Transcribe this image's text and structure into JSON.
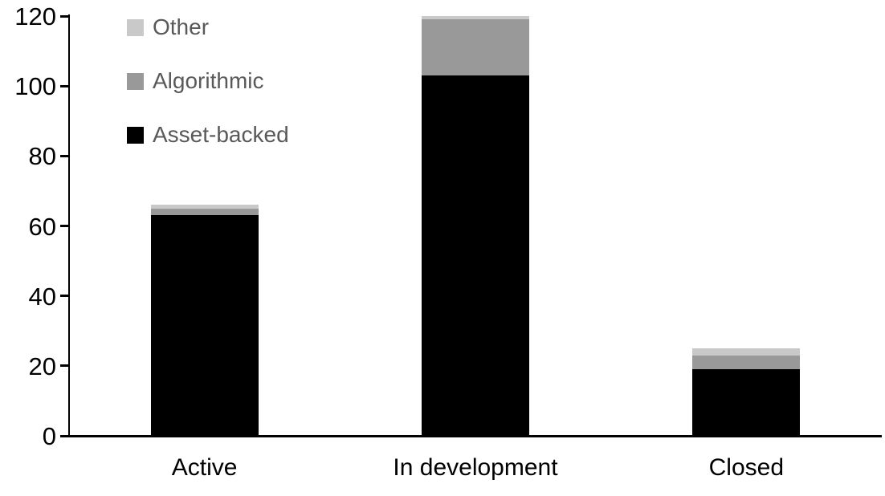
{
  "chart_data": {
    "type": "bar",
    "stacked": true,
    "title": "",
    "xlabel": "",
    "ylabel": "",
    "categories": [
      "Active",
      "In development",
      "Closed"
    ],
    "series": [
      {
        "name": "Asset-backed",
        "color": "#000000",
        "values": [
          63,
          103,
          19
        ]
      },
      {
        "name": "Algorithmic",
        "color": "#999999",
        "values": [
          2,
          16,
          4
        ]
      },
      {
        "name": "Other",
        "color": "#c9c9c9",
        "values": [
          1,
          1,
          2
        ]
      }
    ],
    "totals": [
      66,
      120,
      25
    ],
    "ylim": [
      0,
      120
    ],
    "yticks": [
      0,
      20,
      40,
      60,
      80,
      100,
      120
    ],
    "grid": false,
    "legend_position": "top-left",
    "legend_order_top_to_bottom": [
      "Other",
      "Algorithmic",
      "Asset-backed"
    ],
    "axis_color": "#000000",
    "tick_label_color": "#000000",
    "category_label_color": "#000000",
    "legend_text_color": "#595959"
  }
}
